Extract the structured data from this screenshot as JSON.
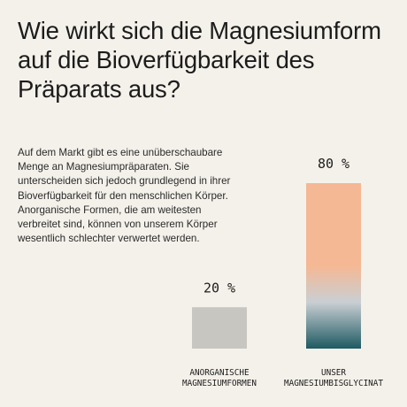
{
  "header": {
    "title": "Wie wirkt sich die Magnesiumform auf die Bioverfügbarkeit des Präparats aus?"
  },
  "intro": {
    "text": "Auf dem Markt gibt es eine unüberschaubare Menge an Magnesiumpräparaten. Sie unterscheiden sich jedoch grundlegend in ihrer Bioverfügbarkeit für den menschlichen Körper. Anorganische Formen, die am weitesten verbreitet sind, können von unserem Körper wesentlich schlechter verwertet werden."
  },
  "chart_data": {
    "type": "bar",
    "categories": [
      "ANORGANISCHE\nMAGNESIUMFORMEN",
      "UNSER\nMAGNESIUMBISGLYCINAT"
    ],
    "values": [
      20,
      80
    ],
    "value_labels": [
      "20 %",
      "80 %"
    ],
    "ylim": [
      0,
      80
    ],
    "grid": false,
    "colors": {
      "bar_inorganic": "#c8c6c1",
      "bar_gradient_top": "#f5b894",
      "bar_gradient_mid": "#c9cfd3",
      "bar_gradient_bottom": "#1e5a62"
    }
  }
}
